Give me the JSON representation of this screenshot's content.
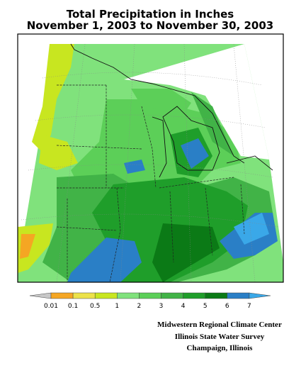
{
  "title": {
    "line1": "Total Precipitation in Inches",
    "line2": "November 1, 2003 to November 30, 2003"
  },
  "legend": {
    "under_color": "#c8c8c8",
    "over_color": "#3aa8e8",
    "bin_colors": [
      "#f5a623",
      "#ece24a",
      "#c8e620",
      "#80e27c",
      "#5ccf58",
      "#41b347",
      "#1f9e2a",
      "#0b7a16",
      "#2a7fc6"
    ],
    "labels": [
      "0.01",
      "0.1",
      "0.5",
      "1",
      "2",
      "3",
      "4",
      "5",
      "6",
      "7"
    ]
  },
  "credits": [
    "Midwestern Regional Climate Center",
    "Illinois State Water Survey",
    "Champaign, Illinois"
  ]
}
